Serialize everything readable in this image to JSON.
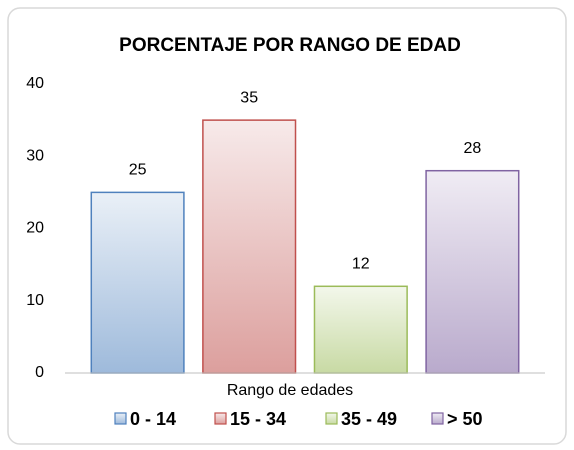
{
  "chart_data": {
    "type": "bar",
    "title": "PORCENTAJE POR RANGO DE EDAD",
    "x_label": "Rango de edades",
    "categories": [
      null
    ],
    "series": [
      {
        "name": "0 - 14",
        "color": "#4f81bd",
        "values": [
          25
        ]
      },
      {
        "name": "15 - 34",
        "color": "#c0504d",
        "values": [
          35
        ]
      },
      {
        "name": "35 - 49",
        "color": "#9bbb59",
        "values": [
          12
        ]
      },
      {
        "name": "> 50",
        "color": "#8064a2",
        "values": [
          28
        ]
      }
    ],
    "ylim": [
      0,
      40
    ],
    "yticks": [
      0,
      10,
      20,
      30,
      40
    ],
    "grid": false,
    "legend": "bottom"
  }
}
